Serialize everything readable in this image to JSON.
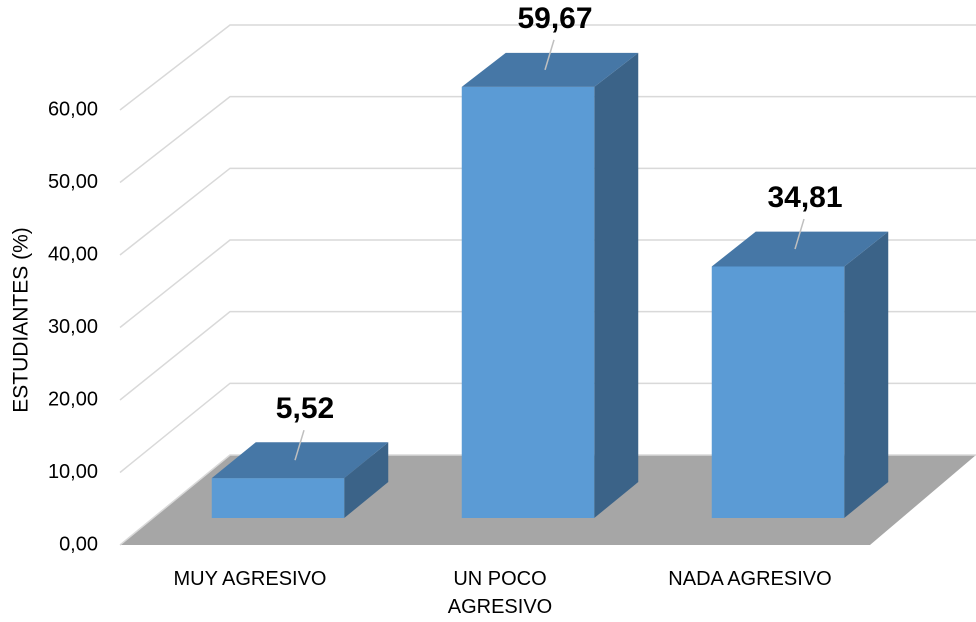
{
  "chart_data": {
    "type": "bar3d",
    "y_axis_label": "ESTUDIANTES (%)",
    "categories": [
      "MUY AGRESIVO",
      "UN POCO AGRESIVO",
      "NADA AGRESIVO"
    ],
    "values": [
      5.52,
      59.67,
      34.81
    ],
    "value_labels": [
      "5,52",
      "59,67",
      "34,81"
    ],
    "color": "#5b9bd5",
    "ylim": [
      0,
      60
    ],
    "yticks": [
      {
        "value": 0,
        "label": "0,00"
      },
      {
        "value": 10,
        "label": "10,00"
      },
      {
        "value": 20,
        "label": "20,00"
      },
      {
        "value": 30,
        "label": "30,00"
      },
      {
        "value": 40,
        "label": "40,00"
      },
      {
        "value": 50,
        "label": "50,00"
      },
      {
        "value": 60,
        "label": "60,00"
      }
    ],
    "grid": true
  }
}
